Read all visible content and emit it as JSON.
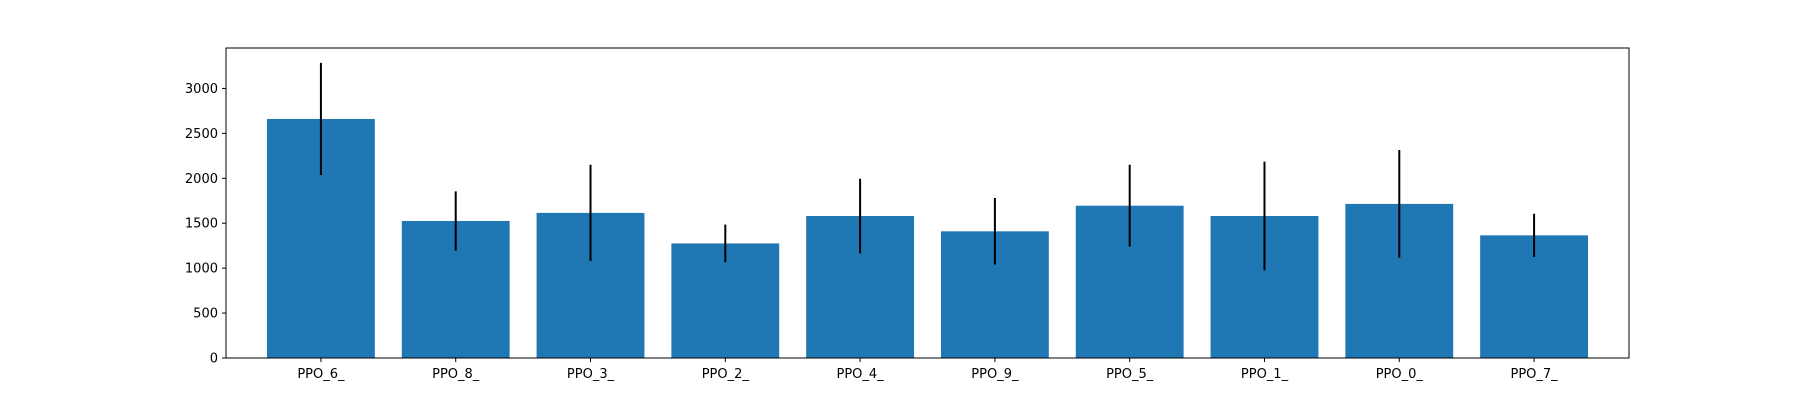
{
  "chart_data": {
    "type": "bar",
    "title": "",
    "xlabel": "",
    "ylabel": "",
    "categories": [
      "PPO_6_",
      "PPO_8_",
      "PPO_3_",
      "PPO_2_",
      "PPO_4_",
      "PPO_9_",
      "PPO_5_",
      "PPO_1_",
      "PPO_0_",
      "PPO_7_"
    ],
    "values": [
      2660,
      1525,
      1615,
      1275,
      1580,
      1410,
      1695,
      1580,
      1715,
      1365
    ],
    "errors": [
      625,
      330,
      535,
      210,
      415,
      370,
      455,
      605,
      600,
      240
    ],
    "ylim": [
      0,
      3450
    ],
    "yticks": [
      0,
      500,
      1000,
      1500,
      2000,
      2500,
      3000
    ],
    "grid": false,
    "legend": "none",
    "colors": {
      "bar": "#1f77b4",
      "error_bar": "#000000",
      "axes": "#000000"
    }
  }
}
